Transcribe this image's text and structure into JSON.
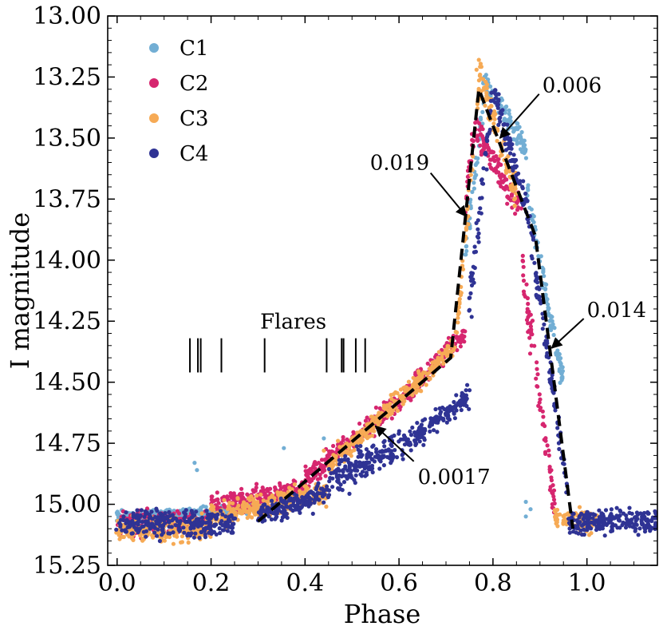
{
  "chart_data": {
    "type": "scatter",
    "xlabel": "Phase",
    "ylabel": "I magnitude",
    "xlim": [
      -0.02,
      1.15
    ],
    "ylim": [
      15.25,
      13.0
    ],
    "y_inverted": true,
    "xticks": [
      0.0,
      0.2,
      0.4,
      0.6,
      0.8,
      1.0
    ],
    "xtick_labels": [
      "0.0",
      "0.2",
      "0.4",
      "0.6",
      "0.8",
      "1.0"
    ],
    "yticks": [
      13.0,
      13.25,
      13.5,
      13.75,
      14.0,
      14.25,
      14.5,
      14.75,
      15.0,
      15.25
    ],
    "ytick_labels": [
      "13.00",
      "13.25",
      "13.50",
      "13.75",
      "14.00",
      "14.25",
      "14.50",
      "14.75",
      "15.00",
      "15.25"
    ],
    "grid": false,
    "legend": {
      "placement": "top-left",
      "entries": [
        {
          "name": "C1",
          "color": "#72aed4"
        },
        {
          "name": "C2",
          "color": "#d6266f"
        },
        {
          "name": "C3",
          "color": "#f6aa55"
        },
        {
          "name": "C4",
          "color": "#2f3394"
        }
      ]
    },
    "fit_line": {
      "style": "dashed",
      "color": "#000000",
      "points": [
        [
          0.3,
          15.07
        ],
        [
          0.71,
          14.4
        ],
        [
          0.77,
          13.3
        ],
        [
          0.89,
          13.9
        ],
        [
          0.97,
          15.1
        ]
      ]
    },
    "slope_annotations": [
      {
        "label": "0.0017",
        "arrow_to": [
          0.55,
          14.68
        ],
        "text_at": [
          0.64,
          14.87
        ]
      },
      {
        "label": "0.019",
        "arrow_to": [
          0.743,
          13.82
        ],
        "text_at": [
          0.545,
          13.63
        ]
      },
      {
        "label": "0.006",
        "arrow_to": [
          0.815,
          13.5
        ],
        "text_at": [
          0.905,
          13.3
        ]
      },
      {
        "label": "0.014",
        "arrow_to": [
          0.925,
          14.36
        ],
        "text_at": [
          1.0,
          14.22
        ]
      }
    ],
    "flares": {
      "label": "Flares",
      "y_range": [
        14.32,
        14.46
      ],
      "phases": [
        0.155,
        0.172,
        0.178,
        0.222,
        0.314,
        0.446,
        0.478,
        0.482,
        0.508,
        0.528
      ]
    },
    "series": [
      {
        "name": "C1",
        "color": "#72aed4",
        "segments": [
          {
            "x0": 0.0,
            "x1": 0.3,
            "y0": 15.05,
            "y1": 15.02,
            "scatter": 0.03
          },
          {
            "x0": 0.74,
            "x1": 0.78,
            "y0": 14.0,
            "y1": 13.35,
            "scatter": 0.08
          },
          {
            "x0": 0.78,
            "x1": 0.87,
            "y0": 13.25,
            "y1": 13.55,
            "scatter": 0.07
          },
          {
            "x0": 0.87,
            "x1": 0.95,
            "y0": 13.7,
            "y1": 14.5,
            "scatter": 0.08
          }
        ],
        "points": [
          [
            0.165,
            14.83
          ],
          [
            0.17,
            14.86
          ],
          [
            0.355,
            14.77
          ],
          [
            0.44,
            14.73
          ],
          [
            0.87,
            14.99
          ],
          [
            0.87,
            15.05
          ],
          [
            0.88,
            15.02
          ]
        ]
      },
      {
        "name": "C2",
        "color": "#d6266f",
        "segments": [
          {
            "x0": 0.0,
            "x1": 0.2,
            "y0": 15.08,
            "y1": 15.08,
            "scatter": 0.07
          },
          {
            "x0": 0.2,
            "x1": 0.4,
            "y0": 15.0,
            "y1": 14.95,
            "scatter": 0.07
          },
          {
            "x0": 0.4,
            "x1": 0.6,
            "y0": 14.9,
            "y1": 14.58,
            "scatter": 0.07
          },
          {
            "x0": 0.6,
            "x1": 0.74,
            "y0": 14.58,
            "y1": 14.3,
            "scatter": 0.06
          },
          {
            "x0": 0.74,
            "x1": 0.76,
            "y0": 13.8,
            "y1": 13.45,
            "scatter": 0.08
          },
          {
            "x0": 0.76,
            "x1": 0.86,
            "y0": 13.45,
            "y1": 13.8,
            "scatter": 0.1
          },
          {
            "x0": 0.86,
            "x1": 0.93,
            "y0": 14.0,
            "y1": 15.0,
            "scatter": 0.12
          }
        ],
        "points": []
      },
      {
        "name": "C3",
        "color": "#f6aa55",
        "segments": [
          {
            "x0": 0.0,
            "x1": 0.2,
            "y0": 15.1,
            "y1": 15.1,
            "scatter": 0.07
          },
          {
            "x0": 0.2,
            "x1": 0.45,
            "y0": 15.05,
            "y1": 14.95,
            "scatter": 0.07
          },
          {
            "x0": 0.45,
            "x1": 0.72,
            "y0": 14.85,
            "y1": 14.35,
            "scatter": 0.06
          },
          {
            "x0": 0.72,
            "x1": 0.775,
            "y0": 14.35,
            "y1": 13.2,
            "scatter": 0.06
          },
          {
            "x0": 0.775,
            "x1": 0.85,
            "y0": 13.25,
            "y1": 13.75,
            "scatter": 0.1
          },
          {
            "x0": 0.93,
            "x1": 1.02,
            "y0": 15.05,
            "y1": 15.08,
            "scatter": 0.06
          }
        ],
        "points": [
          [
            0.77,
            13.18
          ],
          [
            0.765,
            13.22
          ],
          [
            0.44,
            14.78
          ],
          [
            0.47,
            14.74
          ]
        ]
      },
      {
        "name": "C4",
        "color": "#2f3394",
        "segments": [
          {
            "x0": 0.0,
            "x1": 0.25,
            "y0": 15.08,
            "y1": 15.08,
            "scatter": 0.08
          },
          {
            "x0": 0.3,
            "x1": 0.45,
            "y0": 15.05,
            "y1": 14.95,
            "scatter": 0.07
          },
          {
            "x0": 0.45,
            "x1": 0.62,
            "y0": 14.9,
            "y1": 14.75,
            "scatter": 0.1
          },
          {
            "x0": 0.62,
            "x1": 0.75,
            "y0": 14.75,
            "y1": 14.55,
            "scatter": 0.07
          },
          {
            "x0": 0.75,
            "x1": 0.8,
            "y0": 14.2,
            "y1": 13.3,
            "scatter": 0.1
          },
          {
            "x0": 0.8,
            "x1": 0.88,
            "y0": 13.3,
            "y1": 13.85,
            "scatter": 0.08
          },
          {
            "x0": 0.88,
            "x1": 0.96,
            "y0": 13.9,
            "y1": 14.95,
            "scatter": 0.1
          },
          {
            "x0": 0.96,
            "x1": 1.15,
            "y0": 15.07,
            "y1": 15.07,
            "scatter": 0.07
          }
        ],
        "points": []
      }
    ]
  }
}
